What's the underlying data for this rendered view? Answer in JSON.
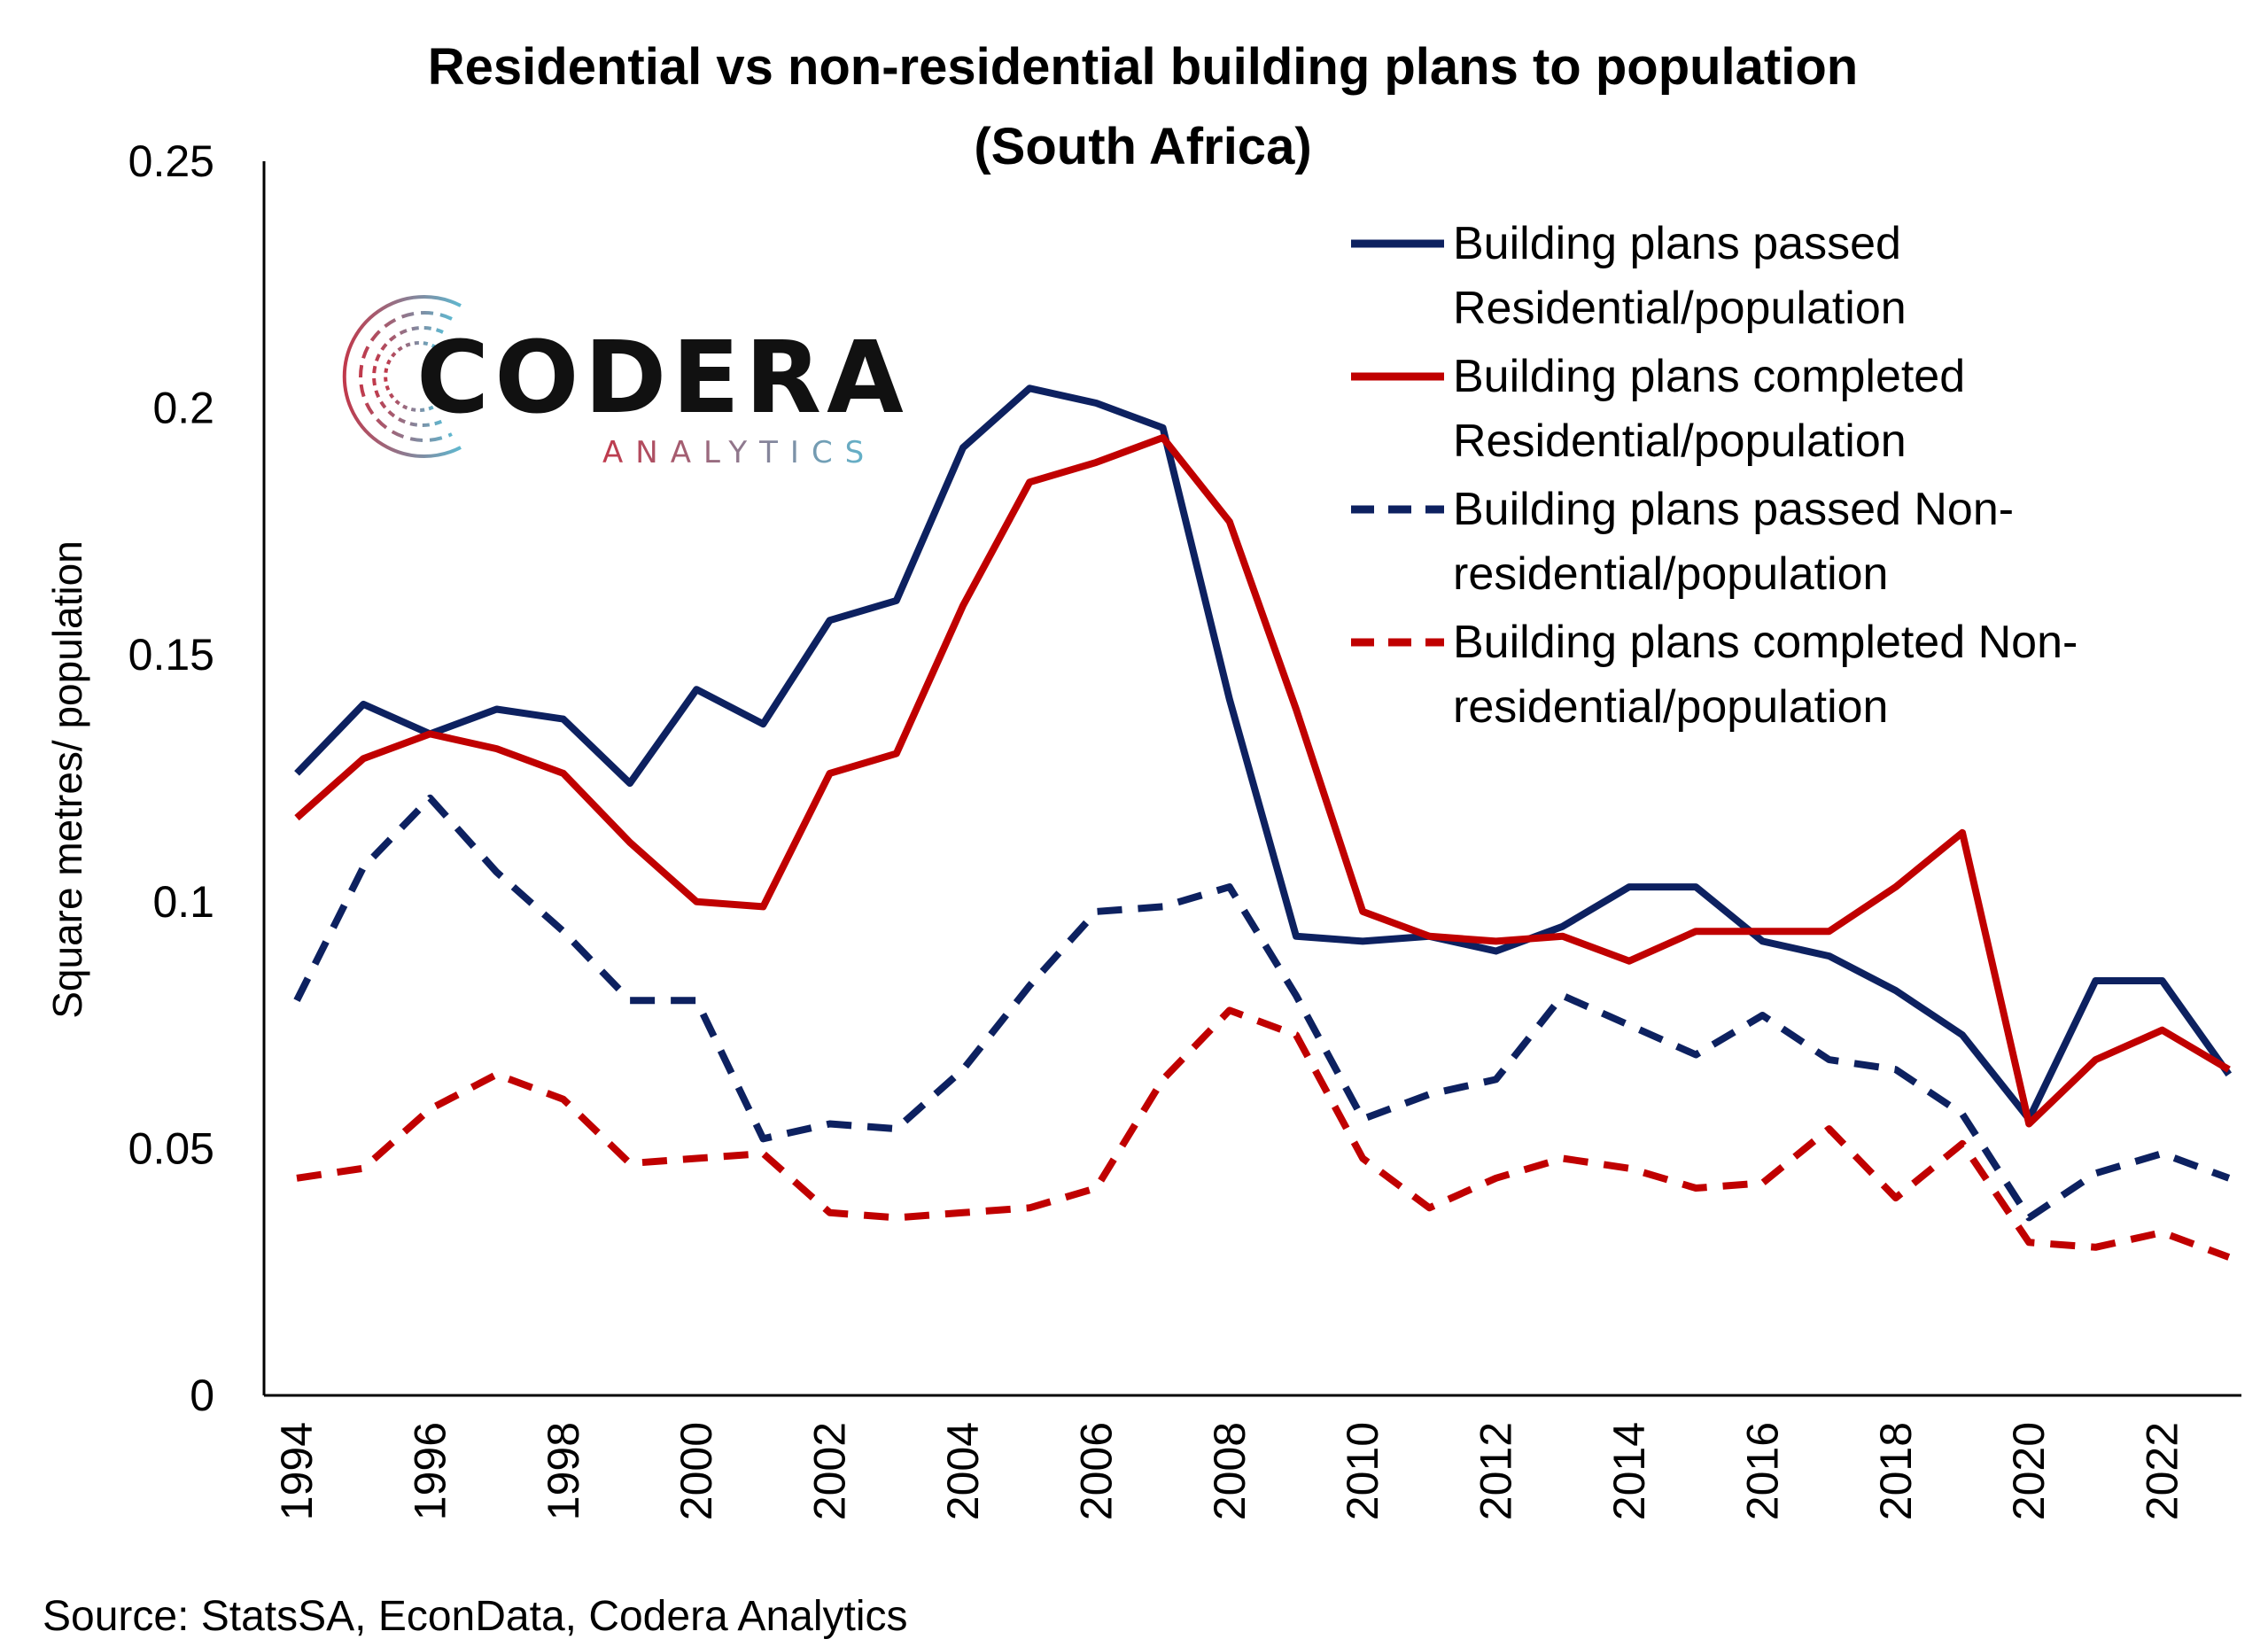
{
  "chart_data": {
    "type": "line",
    "title_line1": "Residential vs non-residential building plans to population",
    "title_line2": "(South Africa)",
    "xlabel": "",
    "ylabel": "Square metres/ population",
    "ylim": [
      0,
      0.25
    ],
    "y_ticks": [
      "0",
      "0.05",
      "0.1",
      "0.15",
      "0.2",
      "0.25"
    ],
    "x_tick_labels": [
      "1994",
      "1996",
      "1998",
      "2000",
      "2002",
      "2004",
      "2006",
      "2008",
      "2010",
      "2012",
      "2014",
      "2016",
      "2018",
      "2020",
      "2022"
    ],
    "x": [
      1994,
      1995,
      1996,
      1997,
      1998,
      1999,
      2000,
      2001,
      2002,
      2003,
      2004,
      2005,
      2006,
      2007,
      2008,
      2009,
      2010,
      2011,
      2012,
      2013,
      2014,
      2015,
      2016,
      2017,
      2018,
      2019,
      2020,
      2021,
      2022,
      2023
    ],
    "grid": false,
    "legend_position": "top-right",
    "series": [
      {
        "name_line1": "Building plans passed",
        "name_line2": "Residential/population",
        "color": "#0d2160",
        "dash": "solid",
        "values": [
          0.126,
          0.14,
          0.134,
          0.139,
          0.137,
          0.124,
          0.143,
          0.136,
          0.157,
          0.161,
          0.192,
          0.204,
          0.201,
          0.196,
          0.141,
          0.093,
          0.092,
          0.093,
          0.09,
          0.095,
          0.103,
          0.103,
          0.092,
          0.089,
          0.082,
          0.073,
          0.056,
          0.084,
          0.084,
          0.065
        ]
      },
      {
        "name_line1": "Building plans completed",
        "name_line2": "Residential/population",
        "color": "#c00000",
        "dash": "solid",
        "values": [
          0.117,
          0.129,
          0.134,
          0.131,
          0.126,
          0.112,
          0.1,
          0.099,
          0.126,
          0.13,
          0.16,
          0.185,
          0.189,
          0.194,
          0.177,
          0.139,
          0.098,
          0.093,
          0.092,
          0.093,
          0.088,
          0.094,
          0.094,
          0.094,
          0.103,
          0.114,
          0.055,
          0.068,
          0.074,
          0.066
        ]
      },
      {
        "name_line1": "Building plans passed Non-",
        "name_line2": "residential/population",
        "color": "#0d2160",
        "dash": "dashed",
        "values": [
          0.08,
          0.107,
          0.121,
          0.106,
          0.094,
          0.08,
          0.08,
          0.052,
          0.055,
          0.054,
          0.066,
          0.083,
          0.098,
          0.099,
          0.103,
          0.081,
          0.056,
          0.061,
          0.064,
          0.081,
          0.075,
          0.069,
          0.077,
          0.068,
          0.066,
          0.057,
          0.036,
          0.045,
          0.049,
          0.044
        ]
      },
      {
        "name_line1": "Building plans completed Non-",
        "name_line2": "residential/population",
        "color": "#c00000",
        "dash": "dashed",
        "values": [
          0.044,
          0.046,
          0.058,
          0.065,
          0.06,
          0.047,
          0.048,
          0.049,
          0.037,
          0.036,
          0.037,
          0.038,
          0.042,
          0.064,
          0.078,
          0.073,
          0.048,
          0.038,
          0.044,
          0.048,
          0.046,
          0.042,
          0.043,
          0.054,
          0.04,
          0.051,
          0.031,
          0.03,
          0.033,
          0.028
        ]
      }
    ],
    "source": "Source: StatsSA, EconData, Codera Analytics"
  },
  "logo": {
    "name": "CODERA",
    "subtitle": "ANALYTICS",
    "text_color": "#111111",
    "subtitle_color_start": "#c0394b",
    "subtitle_color_end": "#5fb7cf"
  }
}
